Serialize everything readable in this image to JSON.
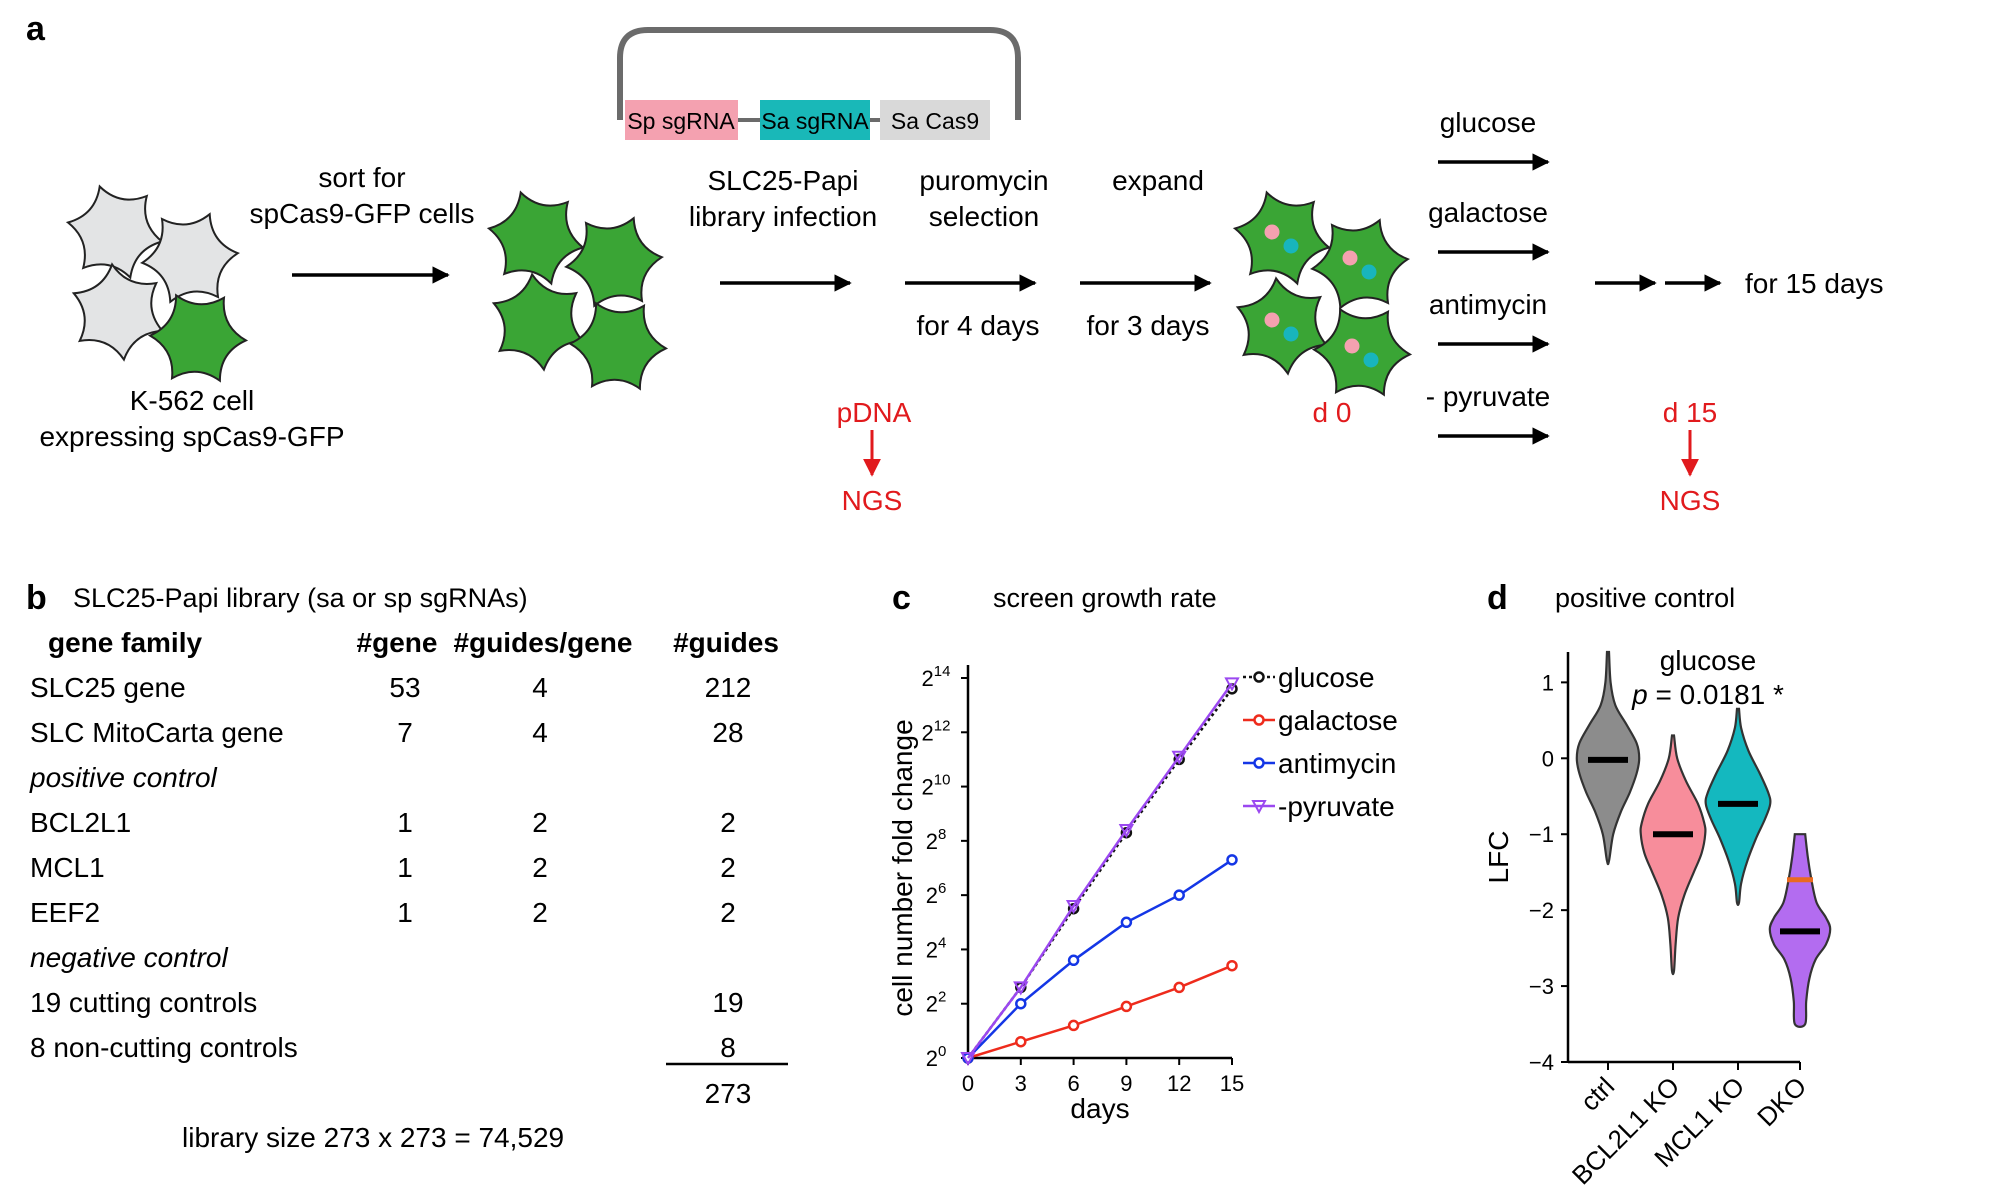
{
  "panel_a": {
    "label": "a",
    "cell_caption": [
      "K-562 cell",
      "expressing spCas9-GFP"
    ],
    "step_sort": [
      "sort for",
      "spCas9-GFP cells"
    ],
    "step_infection": [
      "SLC25-Papi",
      "library infection"
    ],
    "step_selection": [
      "puromycin",
      "selection"
    ],
    "step_selection_time": "for 4 days",
    "step_expand": "expand",
    "step_expand_time": "for 3 days",
    "plasmid": {
      "sp": "Sp sgRNA",
      "sa": "Sa sgRNA",
      "cas": "Sa Cas9"
    },
    "conditions": [
      "glucose",
      "galactose",
      "antimycin",
      "- pyruvate"
    ],
    "duration": "for 15 days",
    "pdna": "pDNA",
    "ngs": "NGS",
    "d0": "d 0",
    "d15": "d 15",
    "colors": {
      "grey_cell": "#e3e4e5",
      "green_cell": "#3aa535",
      "pink": "#f4a1b0",
      "teal": "#18b5bd",
      "red": "#e11a1d",
      "plasmid_sp": "#f4a1b0",
      "plasmid_sa": "#19b8b8",
      "plasmid_cas": "#d9d9d9"
    }
  },
  "panel_b": {
    "label": "b",
    "title": "SLC25-Papi library (sa or sp sgRNAs)",
    "headers": [
      "gene family",
      "#gene",
      "#guides/gene",
      "#guides"
    ],
    "rows": [
      [
        "SLC25 gene",
        "53",
        "4",
        "212"
      ],
      [
        "SLC MitoCarta gene",
        "7",
        "4",
        "28"
      ],
      [
        "positive control",
        "",
        "",
        ""
      ],
      [
        "BCL2L1",
        "1",
        "2",
        "2"
      ],
      [
        "MCL1",
        "1",
        "2",
        "2"
      ],
      [
        "EEF2",
        "1",
        "2",
        "2"
      ],
      [
        "negative control",
        "",
        "",
        ""
      ],
      [
        "19 cutting controls",
        "",
        "",
        "19"
      ],
      [
        "8 non-cutting controls",
        "",
        "",
        "8"
      ]
    ],
    "total": "273",
    "footer": "library size 273 x 273 = 74,529"
  },
  "panel_c": {
    "label": "c",
    "title": "screen growth rate",
    "chart_data": {
      "type": "line",
      "title": "screen growth rate",
      "xlabel": "days",
      "ylabel": "cell number fold change",
      "x": [
        0,
        3,
        6,
        9,
        12,
        15
      ],
      "xlim": [
        0,
        15
      ],
      "ylim_log2": [
        0,
        14
      ],
      "y_scale": "log2",
      "xticks": [
        "0",
        "3",
        "6",
        "9",
        "12",
        "15"
      ],
      "yticks_exp": [
        "0",
        "2",
        "4",
        "6",
        "8",
        "10",
        "12",
        "14"
      ],
      "y_base": "2",
      "legend_position": "top-right",
      "series": [
        {
          "name": "glucose",
          "log2_values": [
            0,
            2.6,
            5.5,
            8.3,
            11.0,
            13.6
          ],
          "color": "#111111",
          "marker": "circle",
          "dash": "dotted"
        },
        {
          "name": "galactose",
          "log2_values": [
            0,
            0.6,
            1.2,
            1.9,
            2.6,
            3.4
          ],
          "color": "#ee2b1c",
          "marker": "circle",
          "dash": "solid"
        },
        {
          "name": "antimycin",
          "log2_values": [
            0,
            2.0,
            3.6,
            5.0,
            6.0,
            7.3
          ],
          "color": "#1436e6",
          "marker": "circle",
          "dash": "solid"
        },
        {
          "name": "-pyruvate",
          "log2_values": [
            0,
            2.6,
            5.6,
            8.4,
            11.1,
            13.8
          ],
          "color": "#9b48f0",
          "marker": "triangle-down",
          "dash": "solid"
        }
      ]
    }
  },
  "panel_d": {
    "label": "d",
    "title": "positive control",
    "subtitle": "glucose",
    "pvalue_prefix": "p",
    "pvalue_rest": " = 0.0181 *",
    "chart_data": {
      "type": "violin",
      "ylabel": "LFC",
      "ylim": [
        -4,
        1.4
      ],
      "yticks": [
        1,
        0,
        -1,
        -2,
        -3,
        -4
      ],
      "ytick_labels": [
        "1",
        "0",
        "−1",
        "−2",
        "−3",
        "−4"
      ],
      "categories": [
        "ctrl",
        "BCL2L1 KO",
        "MCL1 KO",
        "DKO"
      ],
      "colors": [
        "#8c8c8c",
        "#f78d9b",
        "#14b8bf",
        "#b36cf0"
      ],
      "medians": [
        -0.02,
        -1.0,
        -0.6,
        -2.28
      ],
      "extra_marker": {
        "category": "DKO",
        "value": -1.6,
        "color": "#e96a1f"
      },
      "ranges": [
        [
          -1.35,
          1.4
        ],
        [
          -2.8,
          0.3
        ],
        [
          -1.9,
          0.65
        ],
        [
          -3.5,
          -1.0
        ]
      ],
      "profiles": [
        [
          [
            1.4,
            0.02
          ],
          [
            1.0,
            0.05
          ],
          [
            0.7,
            0.14
          ],
          [
            0.45,
            0.35
          ],
          [
            0.2,
            0.55
          ],
          [
            0.0,
            0.6
          ],
          [
            -0.2,
            0.55
          ],
          [
            -0.45,
            0.42
          ],
          [
            -0.7,
            0.25
          ],
          [
            -1.0,
            0.1
          ],
          [
            -1.35,
            0.02
          ]
        ],
        [
          [
            0.3,
            0.02
          ],
          [
            0.0,
            0.08
          ],
          [
            -0.3,
            0.25
          ],
          [
            -0.6,
            0.48
          ],
          [
            -0.85,
            0.6
          ],
          [
            -1.0,
            0.62
          ],
          [
            -1.25,
            0.55
          ],
          [
            -1.5,
            0.4
          ],
          [
            -1.8,
            0.22
          ],
          [
            -2.1,
            0.1
          ],
          [
            -2.45,
            0.05
          ],
          [
            -2.8,
            0.02
          ]
        ],
        [
          [
            0.65,
            0.02
          ],
          [
            0.4,
            0.06
          ],
          [
            0.1,
            0.2
          ],
          [
            -0.2,
            0.42
          ],
          [
            -0.45,
            0.58
          ],
          [
            -0.6,
            0.62
          ],
          [
            -0.8,
            0.52
          ],
          [
            -1.05,
            0.35
          ],
          [
            -1.35,
            0.18
          ],
          [
            -1.65,
            0.06
          ],
          [
            -1.9,
            0.02
          ]
        ],
        [
          [
            -1.0,
            0.1
          ],
          [
            -1.3,
            0.15
          ],
          [
            -1.6,
            0.22
          ],
          [
            -1.9,
            0.32
          ],
          [
            -2.1,
            0.5
          ],
          [
            -2.25,
            0.58
          ],
          [
            -2.45,
            0.5
          ],
          [
            -2.65,
            0.3
          ],
          [
            -2.9,
            0.18
          ],
          [
            -3.2,
            0.12
          ],
          [
            -3.5,
            0.1
          ]
        ]
      ]
    }
  }
}
